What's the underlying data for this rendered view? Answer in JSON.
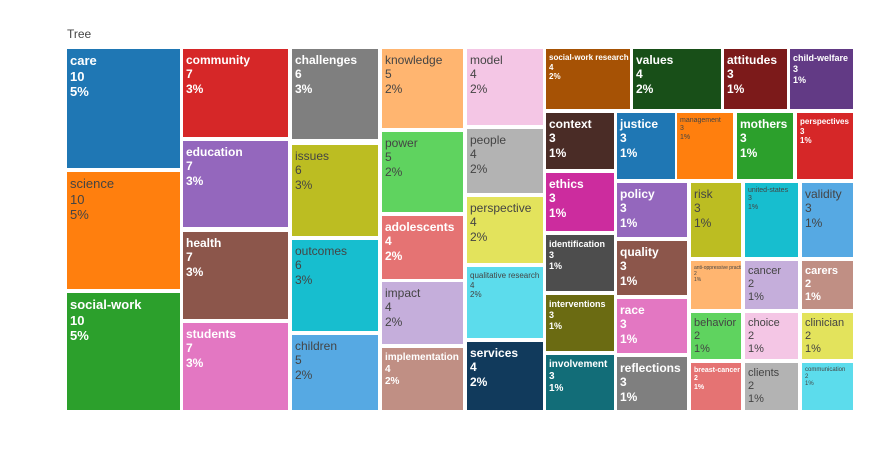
{
  "chart_data": {
    "type": "treemap",
    "title": "Tree",
    "label_format": [
      "name",
      "value",
      "percent"
    ],
    "items": [
      {
        "name": "care",
        "value": 10,
        "percent": "5%",
        "color": "#1f77b4"
      },
      {
        "name": "science",
        "value": 10,
        "percent": "5%",
        "color": "#ff7f0e"
      },
      {
        "name": "social-work",
        "value": 10,
        "percent": "5%",
        "color": "#2ca02c"
      },
      {
        "name": "community",
        "value": 7,
        "percent": "3%",
        "color": "#d62728"
      },
      {
        "name": "education",
        "value": 7,
        "percent": "3%",
        "color": "#9467bd"
      },
      {
        "name": "health",
        "value": 7,
        "percent": "3%",
        "color": "#8c564b"
      },
      {
        "name": "students",
        "value": 7,
        "percent": "3%",
        "color": "#e377c2"
      },
      {
        "name": "challenges",
        "value": 6,
        "percent": "3%",
        "color": "#7f7f7f"
      },
      {
        "name": "issues",
        "value": 6,
        "percent": "3%",
        "color": "#bcbd22"
      },
      {
        "name": "outcomes",
        "value": 6,
        "percent": "3%",
        "color": "#17becf"
      },
      {
        "name": "children",
        "value": 5,
        "percent": "2%",
        "color": "#56a9e3"
      },
      {
        "name": "knowledge",
        "value": 5,
        "percent": "2%",
        "color": "#ffb570"
      },
      {
        "name": "power",
        "value": 5,
        "percent": "2%",
        "color": "#5fd35f"
      },
      {
        "name": "adolescents",
        "value": 4,
        "percent": "2%",
        "color": "#e57373"
      },
      {
        "name": "impact",
        "value": 4,
        "percent": "2%",
        "color": "#c5aedb"
      },
      {
        "name": "implementation",
        "value": 4,
        "percent": "2%",
        "color": "#c08f84"
      },
      {
        "name": "model",
        "value": 4,
        "percent": "2%",
        "color": "#f4c6e5"
      },
      {
        "name": "people",
        "value": 4,
        "percent": "2%",
        "color": "#b3b3b3"
      },
      {
        "name": "perspective",
        "value": 4,
        "percent": "2%",
        "color": "#e3e35c"
      },
      {
        "name": "qualitative research",
        "value": 4,
        "percent": "2%",
        "color": "#5cdcec"
      },
      {
        "name": "services",
        "value": 4,
        "percent": "2%",
        "color": "#113a5c"
      },
      {
        "name": "social-work research",
        "value": 4,
        "percent": "2%",
        "color": "#a65205"
      },
      {
        "name": "values",
        "value": 4,
        "percent": "2%",
        "color": "#184f18"
      },
      {
        "name": "attitudes",
        "value": 3,
        "percent": "1%",
        "color": "#7c1a1a"
      },
      {
        "name": "child-welfare",
        "value": 3,
        "percent": "1%",
        "color": "#623a85"
      },
      {
        "name": "context",
        "value": 3,
        "percent": "1%",
        "color": "#4a2c26"
      },
      {
        "name": "ethics",
        "value": 3,
        "percent": "1%",
        "color": "#cc2c9e"
      },
      {
        "name": "identification",
        "value": 3,
        "percent": "1%",
        "color": "#4d4d4d"
      },
      {
        "name": "interventions",
        "value": 3,
        "percent": "1%",
        "color": "#6b6b12"
      },
      {
        "name": "involvement",
        "value": 3,
        "percent": "1%",
        "color": "#126d78"
      },
      {
        "name": "justice",
        "value": 3,
        "percent": "1%",
        "color": "#1f77b4"
      },
      {
        "name": "policy",
        "value": 3,
        "percent": "1%",
        "color": "#9467bd"
      },
      {
        "name": "quality",
        "value": 3,
        "percent": "1%",
        "color": "#8c564b"
      },
      {
        "name": "race",
        "value": 3,
        "percent": "1%",
        "color": "#e377c2"
      },
      {
        "name": "reflections",
        "value": 3,
        "percent": "1%",
        "color": "#7f7f7f"
      },
      {
        "name": "management",
        "value": 3,
        "percent": "1%",
        "color": "#ff7f0e"
      },
      {
        "name": "mothers",
        "value": 3,
        "percent": "1%",
        "color": "#2ca02c"
      },
      {
        "name": "perspectives",
        "value": 3,
        "percent": "1%",
        "color": "#d62728"
      },
      {
        "name": "risk",
        "value": 3,
        "percent": "1%",
        "color": "#bcbd22"
      },
      {
        "name": "united-states",
        "value": 3,
        "percent": "1%",
        "color": "#17becf"
      },
      {
        "name": "validity",
        "value": 3,
        "percent": "1%",
        "color": "#56a9e3"
      },
      {
        "name": "anti-oppressive practice",
        "value": 2,
        "percent": "1%",
        "color": "#ffb570"
      },
      {
        "name": "cancer",
        "value": 2,
        "percent": "1%",
        "color": "#c5aedb"
      },
      {
        "name": "carers",
        "value": 2,
        "percent": "1%",
        "color": "#c08f84"
      },
      {
        "name": "behavior",
        "value": 2,
        "percent": "1%",
        "color": "#5fd35f"
      },
      {
        "name": "choice",
        "value": 2,
        "percent": "1%",
        "color": "#f4c6e5"
      },
      {
        "name": "clinician",
        "value": 2,
        "percent": "1%",
        "color": "#e3e35c"
      },
      {
        "name": "breast-cancer",
        "value": 2,
        "percent": "1%",
        "color": "#e57373"
      },
      {
        "name": "clients",
        "value": 2,
        "percent": "1%",
        "color": "#b3b3b3"
      },
      {
        "name": "communication",
        "value": 2,
        "percent": "1%",
        "color": "#5cdcec"
      }
    ]
  }
}
